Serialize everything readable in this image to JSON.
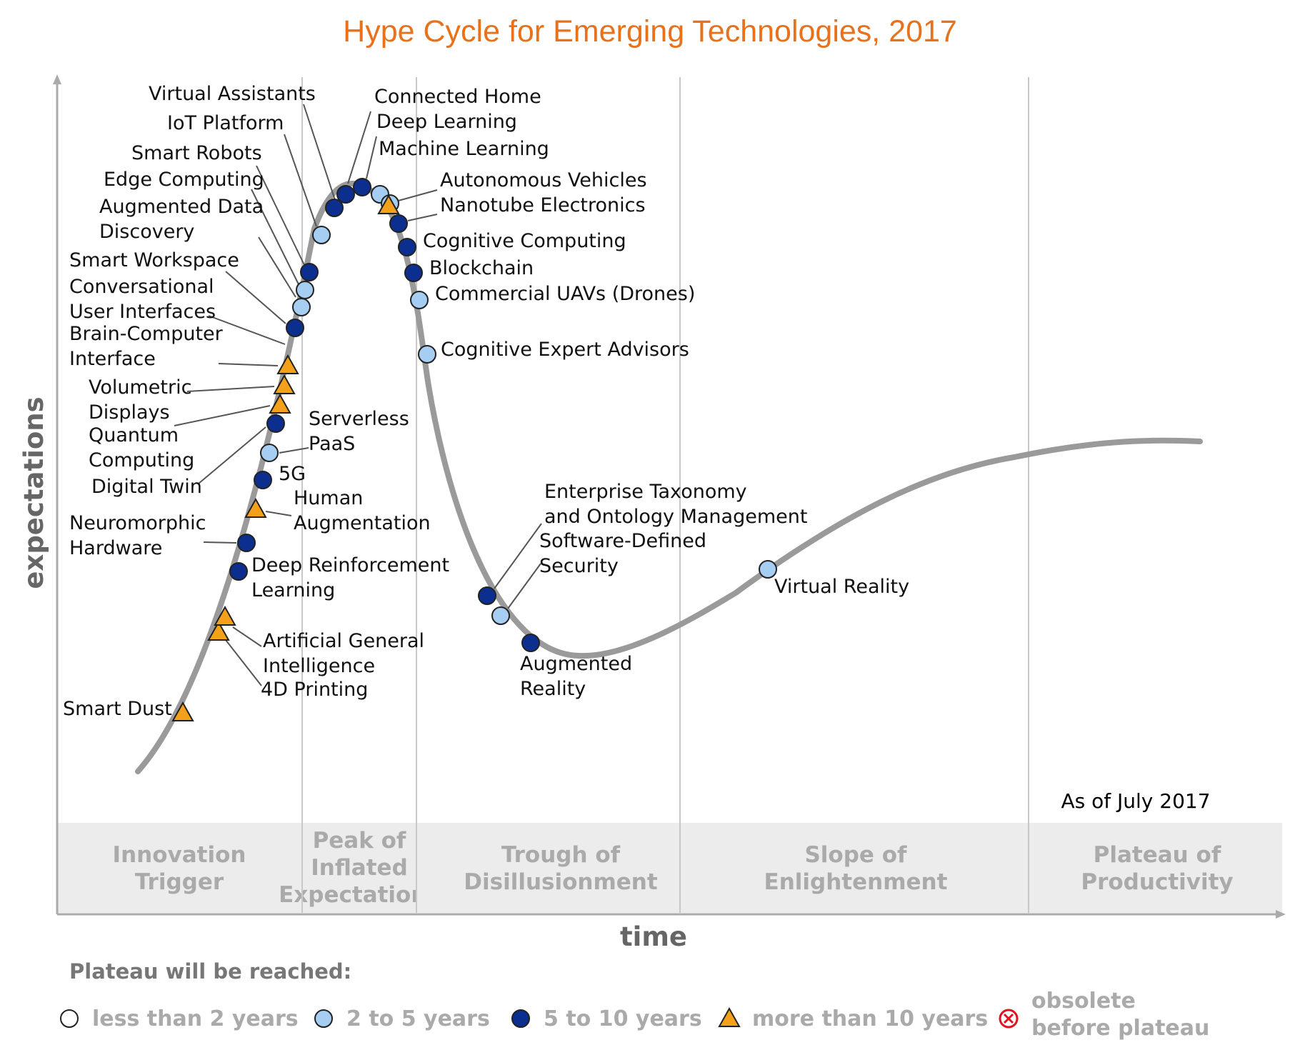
{
  "chart_data": {
    "type": "scatter",
    "title": "Hype Cycle for Emerging Technologies, 2017",
    "xlabel": "time",
    "ylabel": "expectations",
    "note": "As of July 2017",
    "phases": [
      {
        "lines": [
          "Innovation",
          "Trigger"
        ]
      },
      {
        "lines": [
          "Peak of",
          "Inflated",
          "Expectations"
        ]
      },
      {
        "lines": [
          "Trough of",
          "Disillusionment"
        ]
      },
      {
        "lines": [
          "Slope of",
          "Enlightenment"
        ]
      },
      {
        "lines": [
          "Plateau of",
          "Productivity"
        ]
      }
    ],
    "legend": {
      "title": "Plateau will be reached:",
      "items": [
        {
          "id": "lt2",
          "label": [
            "less than 2 years"
          ],
          "marker": "circle",
          "color": "#ffffff"
        },
        {
          "id": "2to5",
          "label": [
            "2 to 5 years"
          ],
          "marker": "circle",
          "color": "#a6cdf2"
        },
        {
          "id": "5to10",
          "label": [
            "5 to 10 years"
          ],
          "marker": "circle",
          "color": "#0b2e8f"
        },
        {
          "id": "gt10",
          "label": [
            "more than 10 years"
          ],
          "marker": "triangle",
          "color": "#f5a01a"
        },
        {
          "id": "obsolete",
          "label": [
            "obsolete",
            "before plateau"
          ],
          "marker": "cross",
          "color": "#e0141e"
        }
      ]
    },
    "colors": {
      "curve": "#9a9a9a",
      "phase_band": "#ececec",
      "title": "#e8721c"
    },
    "technologies": [
      {
        "name": [
          "Smart Dust"
        ],
        "category": "gt10"
      },
      {
        "name": [
          "4D Printing"
        ],
        "category": "gt10"
      },
      {
        "name": [
          "Artificial General",
          "Intelligence"
        ],
        "category": "gt10"
      },
      {
        "name": [
          "Deep Reinforcement",
          "Learning"
        ],
        "category": "5to10"
      },
      {
        "name": [
          "Neuromorphic",
          "Hardware"
        ],
        "category": "5to10"
      },
      {
        "name": [
          "Human",
          "Augmentation"
        ],
        "category": "gt10"
      },
      {
        "name": [
          "5G"
        ],
        "category": "5to10"
      },
      {
        "name": [
          "Serverless",
          "PaaS"
        ],
        "category": "2to5"
      },
      {
        "name": [
          "Digital Twin"
        ],
        "category": "5to10"
      },
      {
        "name": [
          "Quantum",
          "Computing"
        ],
        "category": "gt10"
      },
      {
        "name": [
          "Volumetric",
          "Displays"
        ],
        "category": "gt10"
      },
      {
        "name": [
          "Brain-Computer",
          "Interface"
        ],
        "category": "gt10"
      },
      {
        "name": [
          "Conversational",
          "User Interfaces"
        ],
        "category": "5to10"
      },
      {
        "name": [
          "Smart Workspace"
        ],
        "category": "5to10"
      },
      {
        "name": [
          "Augmented Data",
          "Discovery"
        ],
        "category": "2to5"
      },
      {
        "name": [
          "Edge Computing"
        ],
        "category": "2to5"
      },
      {
        "name": [
          "Smart Robots"
        ],
        "category": "5to10"
      },
      {
        "name": [
          "IoT Platform"
        ],
        "category": "2to5"
      },
      {
        "name": [
          "Virtual Assistants"
        ],
        "category": "5to10"
      },
      {
        "name": [
          "Connected Home"
        ],
        "category": "5to10"
      },
      {
        "name": [
          "Deep Learning"
        ],
        "category": "2to5"
      },
      {
        "name": [
          "Machine Learning"
        ],
        "category": "2to5"
      },
      {
        "name": [
          "Autonomous Vehicles"
        ],
        "category": "gt10"
      },
      {
        "name": [
          "Nanotube Electronics"
        ],
        "category": "5to10"
      },
      {
        "name": [
          "Cognitive Computing"
        ],
        "category": "5to10"
      },
      {
        "name": [
          "Blockchain"
        ],
        "category": "5to10"
      },
      {
        "name": [
          "Commercial UAVs (Drones)"
        ],
        "category": "2to5"
      },
      {
        "name": [
          "Cognitive Expert Advisors"
        ],
        "category": "2to5"
      },
      {
        "name": [
          "Enterprise Taxonomy",
          "and Ontology Management"
        ],
        "category": "5to10"
      },
      {
        "name": [
          "Software-Defined",
          "Security"
        ],
        "category": "2to5"
      },
      {
        "name": [
          "Augmented",
          "Reality"
        ],
        "category": "5to10"
      },
      {
        "name": [
          "Virtual Reality"
        ],
        "category": "2to5"
      }
    ]
  }
}
